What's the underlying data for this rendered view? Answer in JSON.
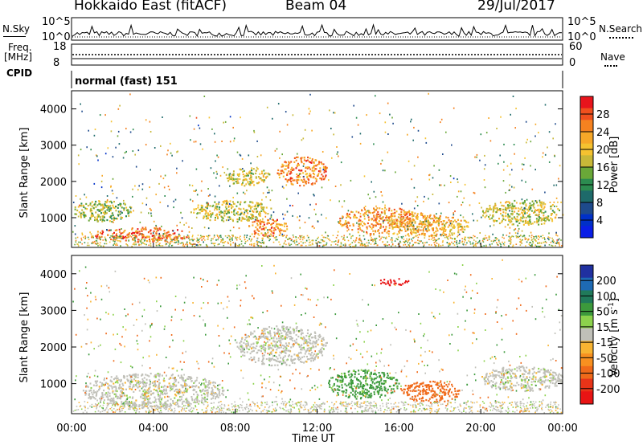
{
  "header": {
    "title": "Hokkaido East (fitACF)",
    "beam": "Beam 04",
    "date": "29/Jul/2017"
  },
  "side_labels": {
    "nsky": "N.Sky",
    "freq": "Freq.",
    "freq_unit": "[MHz]",
    "cpid": "CPID",
    "nsearch": "N.Search",
    "nave": "Nave"
  },
  "noise_panel": {
    "left_ticks": [
      "10^5",
      "10^0"
    ],
    "right_ticks": [
      "10^5",
      "10^0"
    ]
  },
  "freq_panel": {
    "left_ticks": [
      "18",
      "8"
    ],
    "right_ticks": [
      "60",
      "0"
    ]
  },
  "cpid_text": "normal (fast) 151",
  "colorbar_power": {
    "label": "Power [dB]",
    "ticks": [
      "28",
      "24",
      "20",
      "16",
      "12",
      "8",
      "4"
    ],
    "colors": [
      "#e8141c",
      "#f0501e",
      "#f58220",
      "#f7a828",
      "#f5c230",
      "#c8b838",
      "#6aa838",
      "#2c8c50",
      "#1e6a6a",
      "#1e4a8c",
      "#0030c8",
      "#0a1ee6"
    ]
  },
  "colorbar_velocity": {
    "label": "Velocity [m s",
    "label_sup": "-1",
    "label_end": "]",
    "ticks": [
      "200",
      "100",
      "50",
      "15",
      "-15",
      "-50",
      "-100",
      "-200"
    ],
    "colors": [
      "#2030a0",
      "#1e6ab4",
      "#207a5a",
      "#3c9a3c",
      "#8cd24c",
      "#c0c0b8",
      "#f8b432",
      "#f89020",
      "#f06a1a",
      "#e83418",
      "#e81414"
    ]
  },
  "chart_data": [
    {
      "type": "heatmap",
      "title": "Power",
      "xlabel": "Time UT",
      "ylabel": "Slant Range [km]",
      "x_ticks": [
        "00:00",
        "04:00",
        "08:00",
        "12:00",
        "16:00",
        "20:00",
        "00:00"
      ],
      "y_ticks": [
        "1000",
        "2000",
        "3000",
        "4000"
      ],
      "xlim_hours": [
        0,
        24
      ],
      "ylim_km": [
        180,
        4500
      ],
      "units": "dB",
      "echo_regions": [
        {
          "t0": 1.0,
          "t1": 5.8,
          "r0": 350,
          "r1": 750,
          "power": 28
        },
        {
          "t0": 5.8,
          "t1": 9.8,
          "r0": 900,
          "r1": 1500,
          "power": 18
        },
        {
          "t0": 8.6,
          "t1": 10.6,
          "r0": 500,
          "r1": 1000,
          "power": 26
        },
        {
          "t0": 7.5,
          "t1": 9.7,
          "r0": 1900,
          "r1": 2400,
          "power": 18
        },
        {
          "t0": 10.0,
          "t1": 12.5,
          "r0": 1900,
          "r1": 2700,
          "power": 26
        },
        {
          "t0": 13.0,
          "t1": 17.5,
          "r0": 550,
          "r1": 1300,
          "power": 24
        },
        {
          "t0": 15.5,
          "t1": 19.5,
          "r0": 500,
          "r1": 1100,
          "power": 22
        },
        {
          "t0": 20.0,
          "t1": 24.0,
          "r0": 800,
          "r1": 1500,
          "power": 18
        },
        {
          "t0": 0.0,
          "t1": 3.0,
          "r0": 900,
          "r1": 1500,
          "power": 16
        }
      ]
    },
    {
      "type": "heatmap",
      "title": "Velocity",
      "xlabel": "Time UT",
      "ylabel": "Slant Range [km]",
      "x_ticks": [
        "00:00",
        "04:00",
        "08:00",
        "12:00",
        "16:00",
        "20:00",
        "00:00"
      ],
      "y_ticks": [
        "1000",
        "2000",
        "3000",
        "4000"
      ],
      "xlim_hours": [
        0,
        24
      ],
      "ylim_km": [
        180,
        4500
      ],
      "units": "m s-1",
      "echo_regions": [
        {
          "t0": 0.5,
          "t1": 7.5,
          "r0": 350,
          "r1": 1300,
          "velocity": 0
        },
        {
          "t0": 8.0,
          "t1": 12.5,
          "r0": 1500,
          "r1": 2600,
          "velocity": 0
        },
        {
          "t0": 12.5,
          "t1": 16.0,
          "r0": 600,
          "r1": 1400,
          "velocity": 40
        },
        {
          "t0": 16.0,
          "t1": 19.0,
          "r0": 500,
          "r1": 1100,
          "velocity": -60
        },
        {
          "t0": 15.0,
          "t1": 16.5,
          "r0": 3700,
          "r1": 3900,
          "velocity": -200
        },
        {
          "t0": 20.0,
          "t1": 24.0,
          "r0": 800,
          "r1": 1500,
          "velocity": 0
        }
      ]
    }
  ]
}
